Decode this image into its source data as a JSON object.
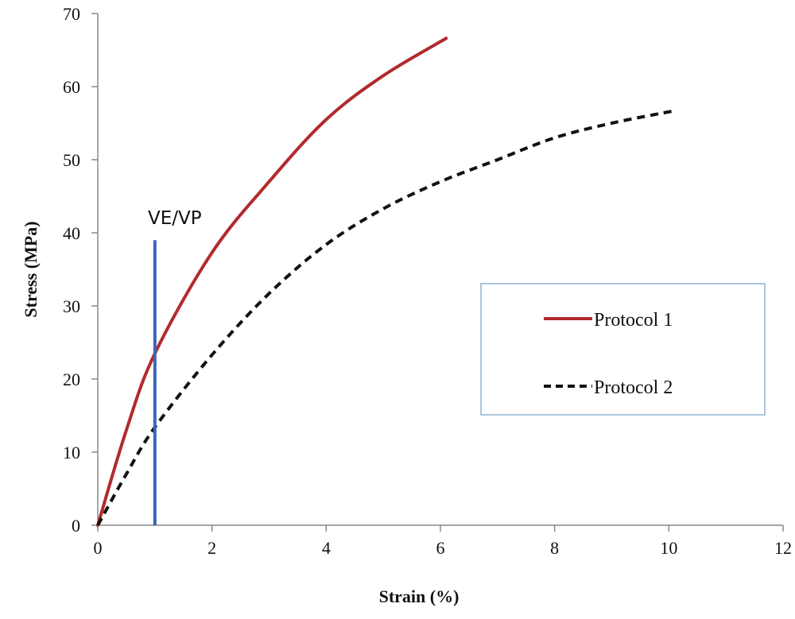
{
  "chart_data": {
    "type": "line",
    "title": "",
    "xlabel": "Strain (%)",
    "ylabel": "Stress (MPa)",
    "xlim": [
      0,
      12
    ],
    "ylim": [
      0,
      70
    ],
    "xticks": [
      0,
      2,
      4,
      6,
      8,
      10,
      12
    ],
    "yticks": [
      0,
      10,
      20,
      30,
      40,
      50,
      60,
      70
    ],
    "grid": false,
    "legend_position": "right",
    "series": [
      {
        "name": "Protocol 1",
        "color": "#b22a2e",
        "style": "solid",
        "x": [
          0,
          0.5,
          1,
          2,
          3,
          4,
          5,
          6.1
        ],
        "y": [
          0,
          13,
          23.5,
          37.3,
          47,
          55.5,
          61.5,
          66.6
        ]
      },
      {
        "name": "Protocol 2",
        "color": "#111111",
        "style": "dashed",
        "x": [
          0,
          0.5,
          1,
          2,
          3,
          4,
          5,
          6,
          7,
          8,
          9,
          10.1
        ],
        "y": [
          0,
          7,
          13.4,
          23.3,
          31.7,
          38.4,
          43.3,
          47,
          50,
          53,
          55,
          56.7
        ]
      }
    ],
    "annotations": [
      {
        "text": "VE/VP",
        "type": "vertical-line",
        "x": 1,
        "y_from": 0,
        "y_to": 39,
        "color": "#3a66b8"
      }
    ]
  }
}
